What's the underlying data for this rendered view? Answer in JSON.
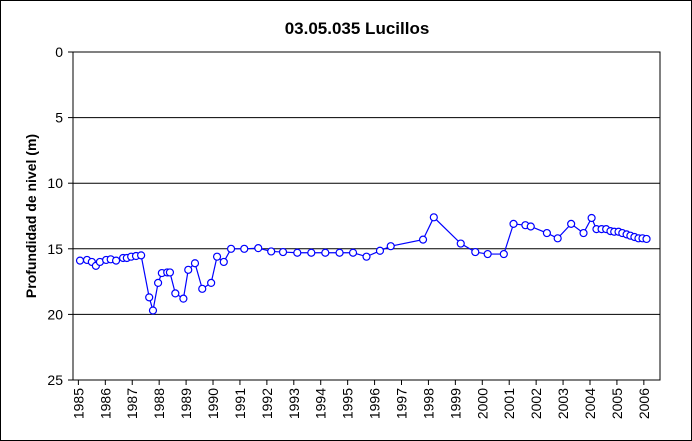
{
  "chart_data": {
    "type": "line",
    "title": "03.05.035 Lucillos",
    "y_label": "Profundidad de nivel (m)",
    "color": "#0000ff",
    "marker_fill": "#ffffff",
    "grid": true,
    "xlim": [
      1984.8,
      2006.6
    ],
    "xticks": [
      1985,
      1986,
      1987,
      1988,
      1989,
      1990,
      1991,
      1992,
      1993,
      1994,
      1995,
      1996,
      1997,
      1998,
      1999,
      2000,
      2001,
      2002,
      2003,
      2004,
      2005,
      2006
    ],
    "ylim": [
      25,
      0
    ],
    "yticks": [
      0,
      5,
      10,
      15,
      20,
      25
    ],
    "x": [
      1985.06,
      1985.32,
      1985.5,
      1985.65,
      1985.8,
      1986.03,
      1986.2,
      1986.4,
      1986.66,
      1986.8,
      1986.96,
      1987.14,
      1987.33,
      1987.63,
      1987.77,
      1987.96,
      1988.1,
      1988.3,
      1988.4,
      1988.6,
      1988.9,
      1989.08,
      1989.33,
      1989.6,
      1989.93,
      1990.15,
      1990.4,
      1990.67,
      1991.16,
      1991.68,
      1992.16,
      1992.6,
      1993.13,
      1993.65,
      1994.17,
      1994.7,
      1995.2,
      1995.7,
      1996.2,
      1996.6,
      1997.8,
      1998.2,
      1999.2,
      1999.74,
      2000.2,
      2000.8,
      2001.16,
      2001.6,
      2001.8,
      2002.4,
      2002.8,
      2003.3,
      2003.76,
      2004.06,
      2004.24,
      2004.43,
      2004.6,
      2004.76,
      2004.9,
      2005.06,
      2005.2,
      2005.36,
      2005.5,
      2005.65,
      2005.8,
      2005.95,
      2006.1
    ],
    "values": [
      15.9,
      15.85,
      16.0,
      16.3,
      16.0,
      15.85,
      15.8,
      15.9,
      15.7,
      15.7,
      15.6,
      15.55,
      15.5,
      18.7,
      19.7,
      17.6,
      16.85,
      16.8,
      16.8,
      18.4,
      18.8,
      16.6,
      16.1,
      18.05,
      17.6,
      15.6,
      16.0,
      15.0,
      15.0,
      14.95,
      15.2,
      15.25,
      15.3,
      15.3,
      15.3,
      15.3,
      15.3,
      15.6,
      15.15,
      14.8,
      14.3,
      12.6,
      14.6,
      15.25,
      15.4,
      15.4,
      13.1,
      13.2,
      13.3,
      13.8,
      14.2,
      13.1,
      13.8,
      12.65,
      13.5,
      13.5,
      13.5,
      13.65,
      13.7,
      13.7,
      13.8,
      13.9,
      14.0,
      14.1,
      14.2,
      14.2,
      14.25
    ]
  }
}
